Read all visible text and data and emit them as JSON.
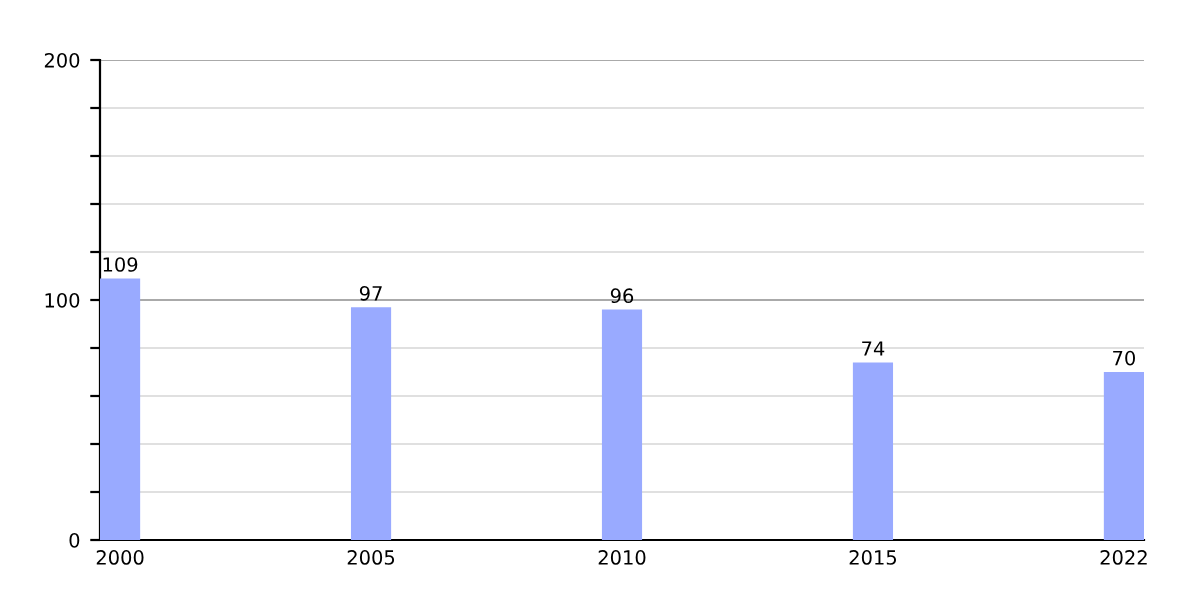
{
  "chart_data": {
    "type": "bar",
    "categories": [
      "2000",
      "2005",
      "2010",
      "2015",
      "2022"
    ],
    "values": [
      109,
      97,
      96,
      74,
      70
    ],
    "color": "#99aaff",
    "data_labels": true,
    "ylim": [
      0,
      200
    ],
    "yticks": [
      0,
      {
        "value": 20,
        "label": null
      },
      {
        "value": 40,
        "label": null
      },
      {
        "value": 60,
        "label": null
      },
      {
        "value": 80,
        "label": null
      },
      100,
      {
        "value": 120,
        "label": null
      },
      {
        "value": 140,
        "label": null
      },
      {
        "value": 160,
        "label": null
      },
      {
        "value": 180,
        "label": null
      },
      200
    ],
    "grid": "y",
    "ref_lines": [
      {
        "axis": "y",
        "value": 100,
        "color": "#aaaaaa"
      },
      {
        "axis": "y",
        "value": 200,
        "color": "#aaaaaa"
      }
    ]
  }
}
